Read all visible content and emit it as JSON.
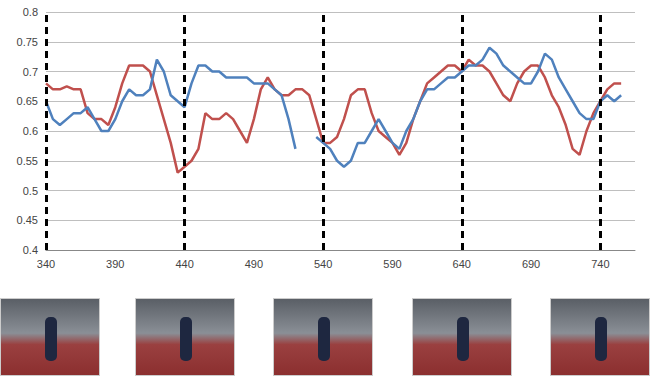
{
  "chart_data": {
    "type": "line",
    "x": [
      340,
      345,
      350,
      355,
      360,
      365,
      370,
      375,
      380,
      385,
      390,
      395,
      400,
      405,
      410,
      415,
      420,
      425,
      430,
      435,
      440,
      445,
      450,
      455,
      460,
      465,
      470,
      475,
      480,
      485,
      490,
      495,
      500,
      505,
      510,
      515,
      520,
      525,
      530,
      535,
      540,
      545,
      550,
      555,
      560,
      565,
      570,
      575,
      580,
      585,
      590,
      595,
      600,
      605,
      610,
      615,
      620,
      625,
      630,
      635,
      640,
      645,
      650,
      655,
      660,
      665,
      670,
      675,
      680,
      685,
      690,
      695,
      700,
      705,
      710,
      715,
      720,
      725,
      730,
      735,
      740,
      745,
      750,
      755
    ],
    "series": [
      {
        "color": "#c0504d",
        "values": [
          0.68,
          0.67,
          0.67,
          0.675,
          0.67,
          0.67,
          0.63,
          0.62,
          0.62,
          0.61,
          0.64,
          0.68,
          0.71,
          0.71,
          0.71,
          0.7,
          0.66,
          0.62,
          0.58,
          0.53,
          0.54,
          0.55,
          0.57,
          0.63,
          0.62,
          0.62,
          0.63,
          0.62,
          0.6,
          0.58,
          0.62,
          0.67,
          0.69,
          0.67,
          0.66,
          0.66,
          0.67,
          0.67,
          0.66,
          0.62,
          0.58,
          0.58,
          0.59,
          0.62,
          0.66,
          0.67,
          0.67,
          0.63,
          0.6,
          0.59,
          0.58,
          0.56,
          0.58,
          0.62,
          0.65,
          0.68,
          0.69,
          0.7,
          0.71,
          0.71,
          0.7,
          0.72,
          0.71,
          0.71,
          0.7,
          0.68,
          0.66,
          0.65,
          0.68,
          0.7,
          0.71,
          0.71,
          0.69,
          0.66,
          0.64,
          0.61,
          0.57,
          0.56,
          0.6,
          0.63,
          0.65,
          0.67,
          0.68,
          0.68
        ]
      },
      {
        "color": "#4f81bd",
        "values": [
          0.65,
          0.62,
          0.61,
          0.62,
          0.63,
          0.63,
          0.64,
          0.62,
          0.6,
          0.6,
          0.62,
          0.65,
          0.67,
          0.66,
          0.66,
          0.67,
          0.72,
          0.7,
          0.66,
          0.65,
          0.64,
          0.68,
          0.71,
          0.71,
          0.7,
          0.7,
          0.69,
          0.69,
          0.69,
          0.69,
          0.68,
          0.68,
          0.68,
          0.67,
          0.66,
          0.62,
          0.57,
          null,
          null,
          0.59,
          0.58,
          0.57,
          0.55,
          0.54,
          0.55,
          0.58,
          0.58,
          0.6,
          0.62,
          0.6,
          0.58,
          0.57,
          0.6,
          0.62,
          0.65,
          0.67,
          0.67,
          0.68,
          0.69,
          0.69,
          0.7,
          0.71,
          0.71,
          0.72,
          0.74,
          0.73,
          0.71,
          0.7,
          0.69,
          0.68,
          0.68,
          0.7,
          0.73,
          0.72,
          0.69,
          0.67,
          0.65,
          0.63,
          0.62,
          0.62,
          0.65,
          0.66,
          0.65,
          0.66
        ]
      }
    ],
    "xlim": [
      340,
      765
    ],
    "xticks": [
      340,
      390,
      440,
      490,
      540,
      590,
      640,
      690,
      740
    ],
    "ylim": [
      0.4,
      0.8
    ],
    "yticks": [
      0.4,
      0.45,
      0.5,
      0.55,
      0.6,
      0.65,
      0.7,
      0.75,
      0.8
    ],
    "vlines": [
      340,
      440,
      540,
      640,
      740
    ],
    "grid": true
  }
}
